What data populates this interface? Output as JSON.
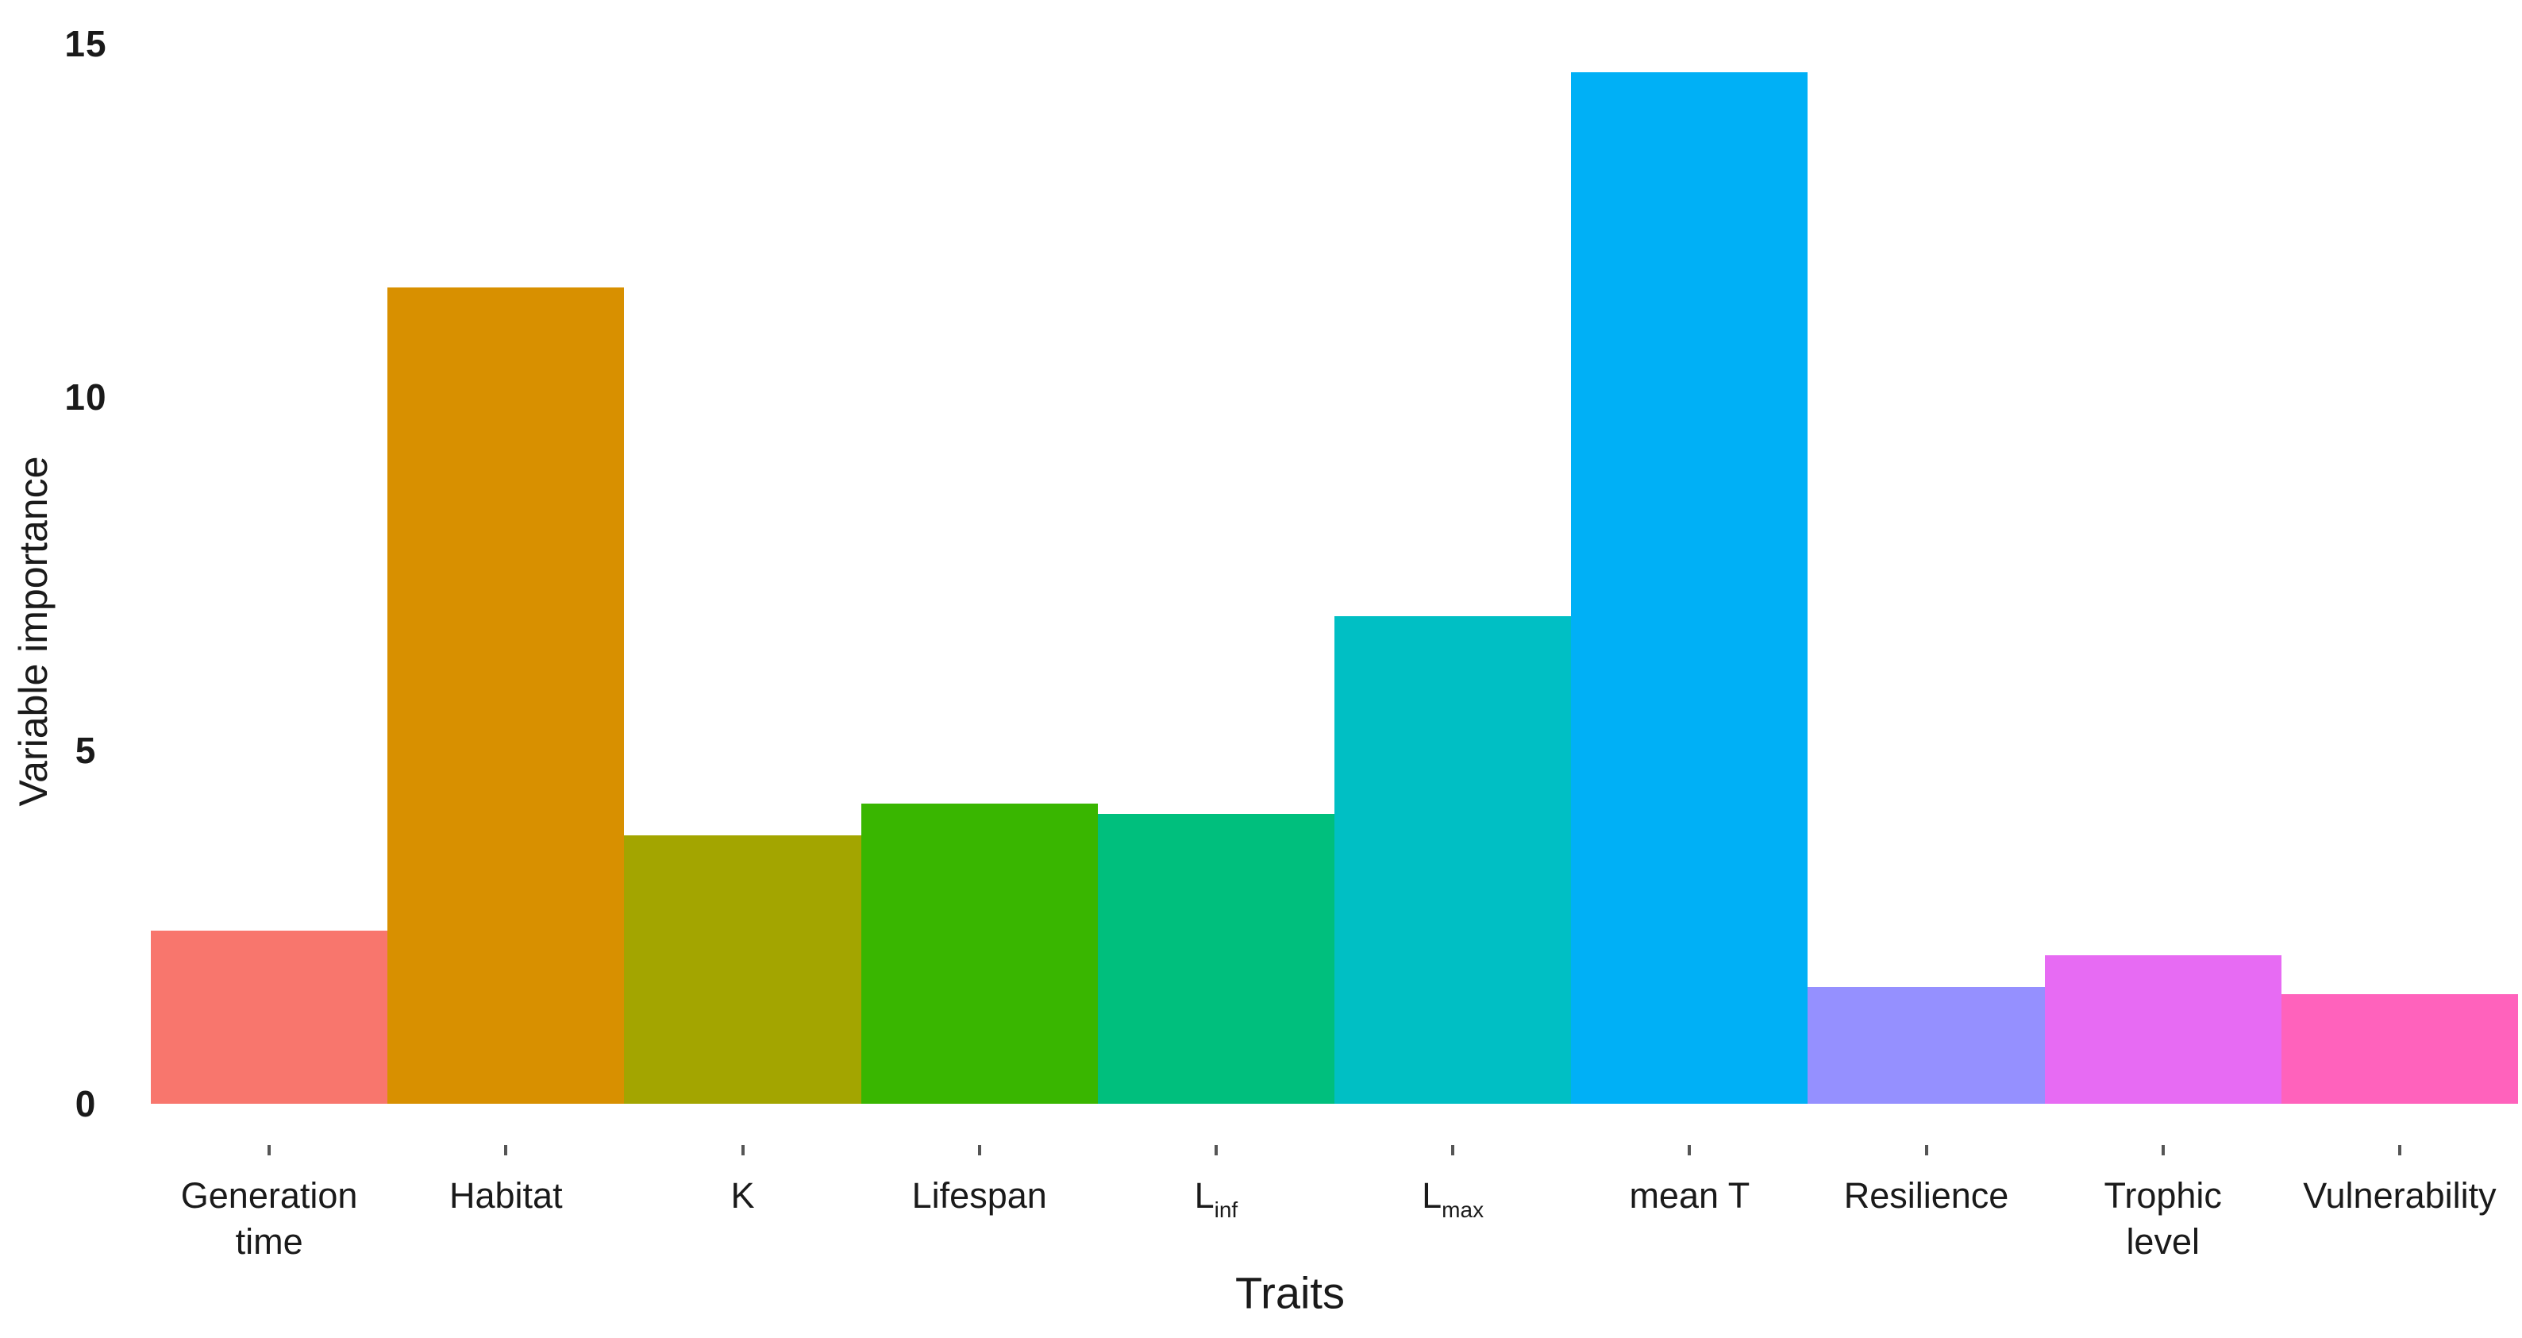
{
  "chart_data": {
    "type": "bar",
    "title": "",
    "xlabel": "Traits",
    "ylabel": "Variable importance",
    "ylim": [
      0,
      15
    ],
    "yticks": [
      0,
      5,
      10,
      15
    ],
    "grid": false,
    "legend_position": "none",
    "background": "#ffffff",
    "categories": [
      "Generation time",
      "Habitat",
      "K",
      "Lifespan",
      "L_inf",
      "L_max",
      "mean T",
      "Resilience",
      "Trophic level",
      "Vulnerability"
    ],
    "values": [
      2.45,
      11.55,
      3.8,
      4.25,
      4.1,
      6.9,
      14.6,
      1.65,
      2.1,
      1.55
    ],
    "bar_colors": [
      "#F8766D",
      "#D89000",
      "#A3A500",
      "#39B600",
      "#00BF7D",
      "#00BFC4",
      "#00B0F6",
      "#9590FF",
      "#E76BF3",
      "#FF62BC"
    ],
    "categories_display": [
      {
        "lines": [
          "Generation",
          "time"
        ]
      },
      {
        "lines": [
          "Habitat"
        ]
      },
      {
        "lines": [
          "K"
        ]
      },
      {
        "lines": [
          "Lifespan"
        ]
      },
      {
        "main": "L",
        "sub": "inf"
      },
      {
        "main": "L",
        "sub": "max"
      },
      {
        "lines": [
          "mean T"
        ]
      },
      {
        "lines": [
          "Resilience"
        ]
      },
      {
        "lines": [
          "Trophic",
          "level"
        ]
      },
      {
        "lines": [
          "Vulnerability"
        ]
      }
    ]
  }
}
